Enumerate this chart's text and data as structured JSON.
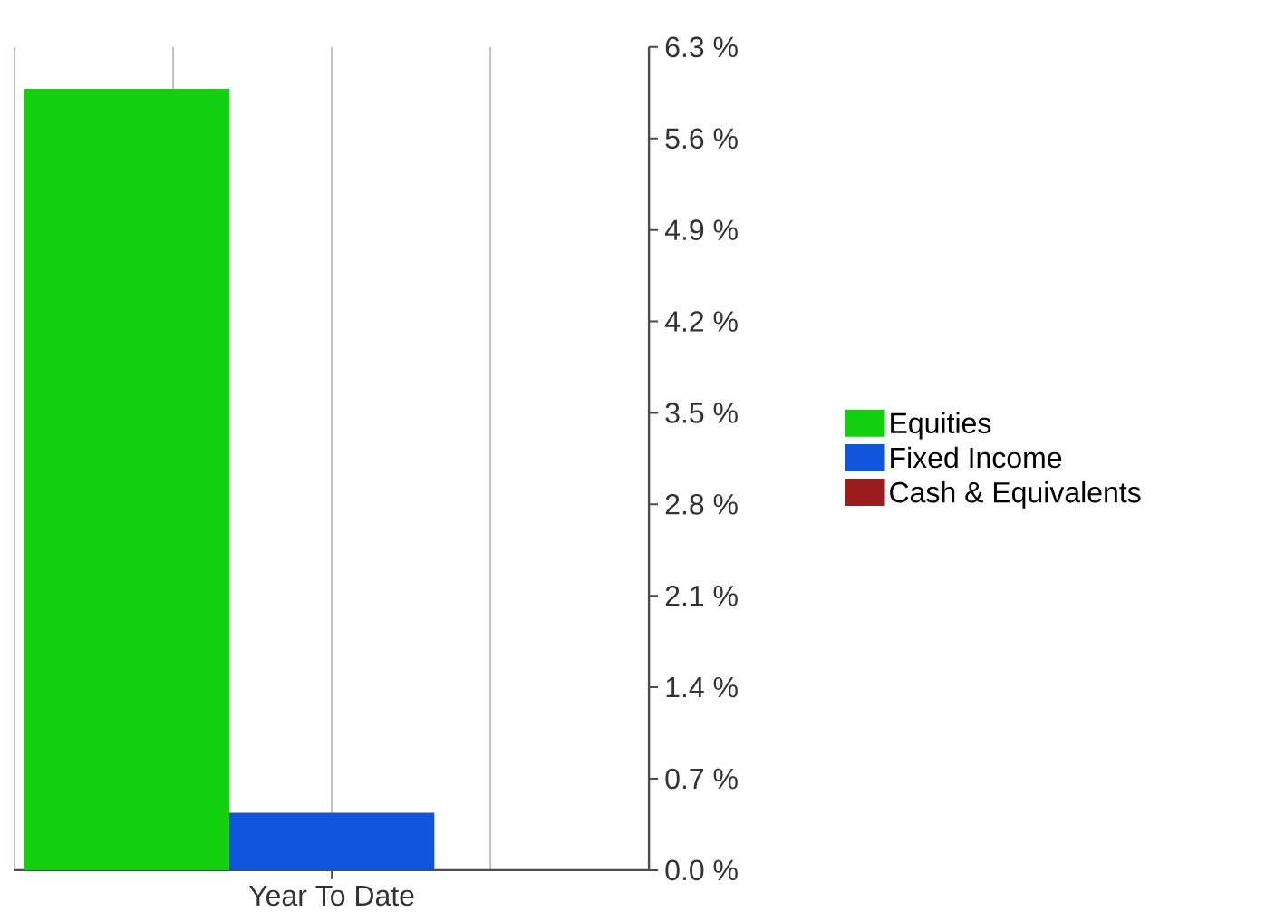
{
  "chart_data": {
    "type": "bar",
    "categories": [
      "Year To Date"
    ],
    "series": [
      {
        "name": "Equities",
        "color": "#14d10f",
        "values": [
          5.98
        ]
      },
      {
        "name": "Fixed Income",
        "color": "#1155dd",
        "values": [
          0.44
        ]
      },
      {
        "name": "Cash & Equivalents",
        "color": "#9b1c1c",
        "values": [
          0
        ]
      }
    ],
    "ylim": [
      0,
      6.3
    ],
    "yticks": [
      {
        "value": 0,
        "label": "0.0 %"
      },
      {
        "value": 0.7,
        "label": "0.7 %"
      },
      {
        "value": 1.4,
        "label": "1.4 %"
      },
      {
        "value": 2.1,
        "label": "2.1 %"
      },
      {
        "value": 2.8,
        "label": "2.8 %"
      },
      {
        "value": 3.5,
        "label": "3.5 %"
      },
      {
        "value": 4.2,
        "label": "4.2 %"
      },
      {
        "value": 4.9,
        "label": "4.9 %"
      },
      {
        "value": 5.6,
        "label": "5.6 %"
      },
      {
        "value": 6.3,
        "label": "6.3 %"
      }
    ],
    "grid": "x",
    "legend": "right"
  }
}
